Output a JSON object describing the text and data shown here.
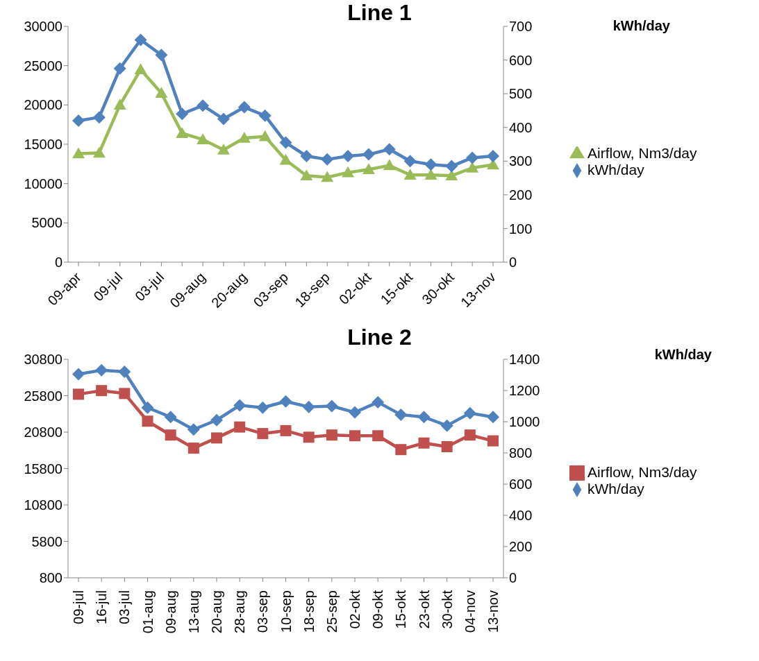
{
  "chart_data": [
    {
      "type": "line",
      "title": "Line 1",
      "y2label": "kWh/day",
      "categories": [
        "09-apr",
        null,
        "09-jul",
        null,
        "03-jul",
        null,
        "09-aug",
        null,
        "20-aug",
        null,
        "03-sep",
        null,
        "18-sep",
        null,
        "02-okt",
        null,
        "15-okt",
        null,
        "30-okt",
        null,
        "13-nov"
      ],
      "series": [
        {
          "name": "Airflow, Nm3/day",
          "color": "#9bbb59",
          "marker": "triangle",
          "values": [
            13800,
            13900,
            20000,
            24500,
            21500,
            16400,
            15600,
            14300,
            15800,
            16000,
            13000,
            11000,
            10800,
            11400,
            11800,
            12300,
            11100,
            11100,
            11000,
            12000,
            12400
          ]
        },
        {
          "name": "kWh/day",
          "color": "#4f81bd",
          "marker": "diamond",
          "axis": "y2",
          "values": [
            420,
            430,
            575,
            660,
            615,
            440,
            465,
            425,
            460,
            435,
            355,
            315,
            305,
            315,
            320,
            335,
            300,
            290,
            285,
            310,
            315
          ]
        }
      ],
      "ylim": [
        0,
        30000
      ],
      "yticks": [
        0,
        5000,
        10000,
        15000,
        20000,
        25000,
        30000
      ],
      "y2lim": [
        0,
        700
      ],
      "y2ticks": [
        0,
        100,
        200,
        300,
        400,
        500,
        600,
        700
      ],
      "legend": "right",
      "line_style": "solid"
    },
    {
      "type": "line",
      "title": "Line 2",
      "y2label": "kWh/day",
      "categories": [
        "09-jul",
        "16-jul",
        "03-jul",
        "01-aug",
        "09-aug",
        "13-aug",
        "20-aug",
        "28-aug",
        "03-sep",
        "10-sep",
        "18-sep",
        "25-sep",
        "02-okt",
        "09-okt",
        "15-okt",
        "23-okt",
        "30-okt",
        "04-nov",
        "13-nov"
      ],
      "series": [
        {
          "name": "Airflow, Nm3/day",
          "color": "#c0504d",
          "marker": "square",
          "values": [
            26000,
            26500,
            26100,
            22300,
            20400,
            18600,
            20000,
            21500,
            20600,
            21000,
            20100,
            20400,
            20300,
            20300,
            18400,
            19300,
            18800,
            20400,
            19600
          ]
        },
        {
          "name": "kWh/day",
          "color": "#4f81bd",
          "marker": "diamond",
          "axis": "y2",
          "values": [
            1305,
            1330,
            1320,
            1090,
            1030,
            950,
            1010,
            1105,
            1090,
            1130,
            1095,
            1100,
            1060,
            1125,
            1045,
            1030,
            975,
            1055,
            1030
          ]
        }
      ],
      "ylim": [
        800,
        30800
      ],
      "yticks": [
        800,
        5800,
        10800,
        15800,
        20800,
        25800,
        30800
      ],
      "y2lim": [
        0,
        1400
      ],
      "y2ticks": [
        0,
        200,
        400,
        600,
        800,
        1000,
        1200,
        1400
      ],
      "legend": "right",
      "line_style": "solid"
    }
  ]
}
